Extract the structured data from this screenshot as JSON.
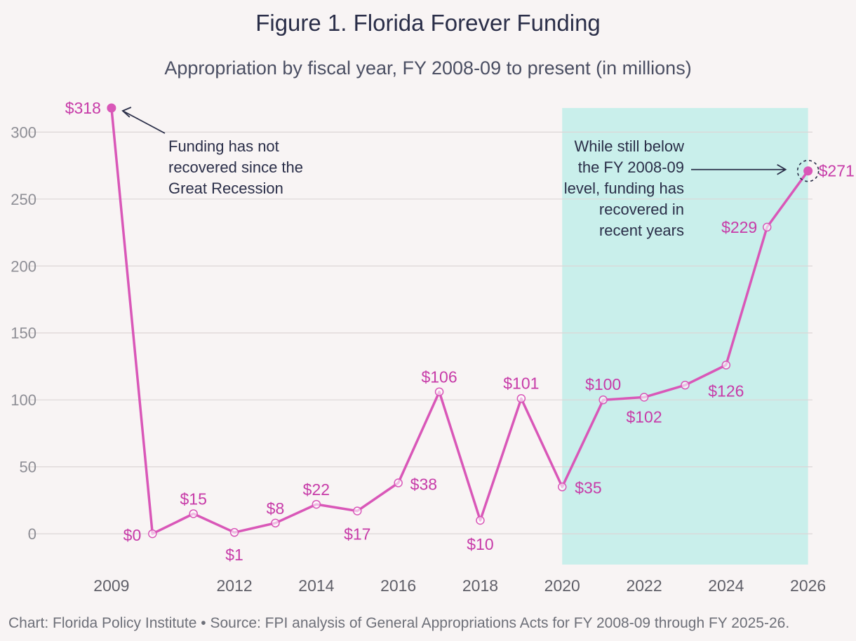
{
  "chart_data": {
    "type": "line",
    "title": "Figure 1. Florida Forever Funding",
    "subtitle": "Appropriation by fiscal year, FY 2008-09 to present (in millions)",
    "x": [
      2009,
      2010,
      2011,
      2012,
      2013,
      2014,
      2015,
      2016,
      2017,
      2018,
      2019,
      2020,
      2021,
      2022,
      2023,
      2024,
      2025,
      2026
    ],
    "values": [
      318,
      0,
      15,
      1,
      8,
      22,
      17,
      38,
      106,
      10,
      101,
      35,
      100,
      102,
      111,
      126,
      229,
      271
    ],
    "data_labels": [
      "$318",
      "$0",
      "$15",
      "$1",
      "$8",
      "$22",
      "$17",
      "$38",
      "$106",
      "$10",
      "$101",
      "$35",
      "$100",
      "$102",
      "",
      "$126",
      "$229",
      "$271"
    ],
    "x_ticks": [
      2009,
      2012,
      2014,
      2016,
      2018,
      2020,
      2022,
      2024,
      2026
    ],
    "y_ticks": [
      0,
      50,
      100,
      150,
      200,
      250,
      300
    ],
    "xlim": [
      2008.3,
      2026.4
    ],
    "ylim": [
      -23,
      318
    ],
    "grid": "horizontal",
    "highlight_range": [
      2020,
      2026
    ],
    "line_color": "#d957b8",
    "highlight_color": "#c9efeb",
    "annotations": [
      {
        "text": [
          "Funding has not",
          "recovered since the",
          "Great Recession"
        ],
        "target_x": 2009
      },
      {
        "text": [
          "While still below",
          "the FY 2008-09",
          "level, funding has",
          "recovered in",
          "recent years"
        ],
        "target_x": 2026
      }
    ]
  },
  "source": "Chart: Florida Policy Institute • Source: FPI analysis of General Appropriations Acts for FY 2008-09 through FY 2025-26."
}
